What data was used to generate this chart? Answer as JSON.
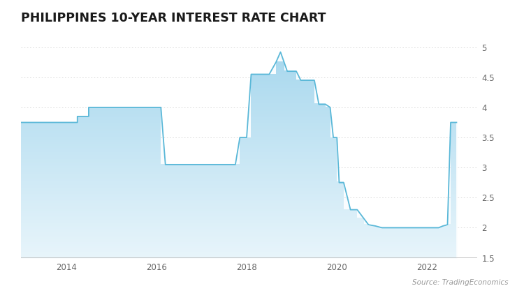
{
  "title": "PHILIPPINES 10-YEAR INTEREST RATE CHART",
  "source": "Source: TradingEconomics",
  "ylim": [
    1.5,
    5.2
  ],
  "ylim_display": [
    1.5,
    5.0
  ],
  "yticks": [
    1.5,
    2.0,
    2.5,
    3.0,
    3.5,
    4.0,
    4.5,
    5.0
  ],
  "xtick_positions": [
    2014,
    2016,
    2018,
    2020,
    2022
  ],
  "xtick_labels": [
    "2014",
    "2016",
    "2018",
    "2020",
    "2022"
  ],
  "xlim": [
    2013.0,
    2023.1
  ],
  "background_color": "#ffffff",
  "line_color": "#5ab8d8",
  "fill_color_top": "#a8d8ee",
  "fill_color_bottom": "#e8f5fb",
  "time_series": [
    [
      2013.0,
      3.75
    ],
    [
      2014.25,
      3.75
    ],
    [
      2014.25,
      3.85
    ],
    [
      2014.5,
      3.85
    ],
    [
      2014.5,
      4.0
    ],
    [
      2014.65,
      4.0
    ],
    [
      2016.0,
      4.0
    ],
    [
      2016.1,
      4.0
    ],
    [
      2016.2,
      3.05
    ],
    [
      2017.75,
      3.05
    ],
    [
      2017.85,
      3.5
    ],
    [
      2018.0,
      3.5
    ],
    [
      2018.1,
      4.55
    ],
    [
      2018.5,
      4.55
    ],
    [
      2018.65,
      4.75
    ],
    [
      2018.75,
      4.92
    ],
    [
      2018.83,
      4.75
    ],
    [
      2018.9,
      4.6
    ],
    [
      2019.1,
      4.6
    ],
    [
      2019.2,
      4.45
    ],
    [
      2019.5,
      4.45
    ],
    [
      2019.6,
      4.05
    ],
    [
      2019.75,
      4.05
    ],
    [
      2019.85,
      4.0
    ],
    [
      2019.92,
      3.5
    ],
    [
      2020.0,
      3.5
    ],
    [
      2020.05,
      2.75
    ],
    [
      2020.15,
      2.75
    ],
    [
      2020.3,
      2.3
    ],
    [
      2020.45,
      2.3
    ],
    [
      2020.6,
      2.15
    ],
    [
      2020.7,
      2.05
    ],
    [
      2020.85,
      2.03
    ],
    [
      2021.0,
      2.0
    ],
    [
      2022.0,
      2.0
    ],
    [
      2022.25,
      2.0
    ],
    [
      2022.35,
      2.03
    ],
    [
      2022.45,
      2.05
    ],
    [
      2022.52,
      3.75
    ],
    [
      2022.65,
      3.75
    ]
  ]
}
